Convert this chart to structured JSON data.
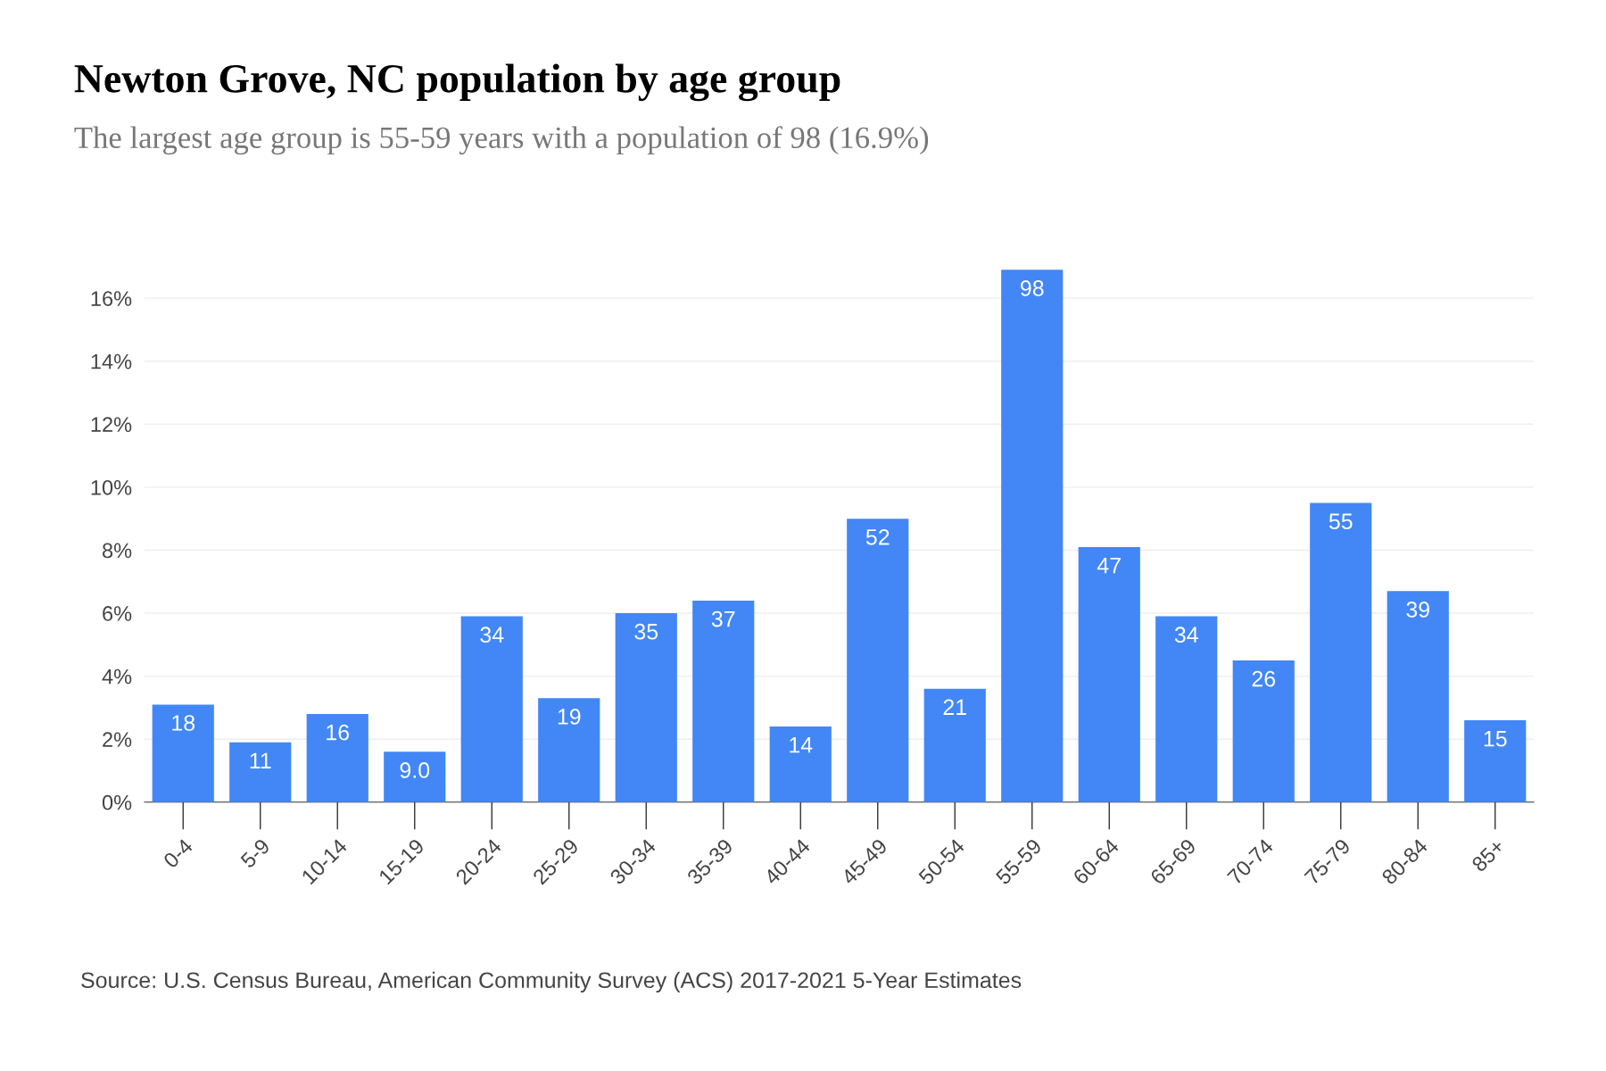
{
  "chart_data": {
    "type": "bar",
    "title": "Newton Grove, NC population by age group",
    "subtitle": "The largest age group is 55-59 years with a population of 98 (16.9%)",
    "categories": [
      "0-4",
      "5-9",
      "10-14",
      "15-19",
      "20-24",
      "25-29",
      "30-34",
      "35-39",
      "40-44",
      "45-49",
      "50-54",
      "55-59",
      "60-64",
      "65-69",
      "70-74",
      "75-79",
      "80-84",
      "85+"
    ],
    "values": [
      3.1,
      1.9,
      2.8,
      1.6,
      5.9,
      3.3,
      6.0,
      6.4,
      2.4,
      9.0,
      3.6,
      16.9,
      8.1,
      5.9,
      4.5,
      9.5,
      6.7,
      2.6
    ],
    "color": "#4287f5",
    "ylim": [
      0,
      17
    ],
    "yticks": [
      {
        "value": 0,
        "label": "0%"
      },
      {
        "value": 2,
        "label": "2%"
      },
      {
        "value": 4,
        "label": "4%"
      },
      {
        "value": 6,
        "label": "6%"
      },
      {
        "value": 8,
        "label": "8%"
      },
      {
        "value": 10,
        "label": "10%"
      },
      {
        "value": 12,
        "label": "12%"
      },
      {
        "value": 14,
        "label": "14%"
      },
      {
        "value": 16,
        "label": "16%"
      }
    ],
    "grid": "y",
    "annotations": [
      {
        "text": "18",
        "x": "0-4",
        "y": 3.1
      },
      {
        "text": "11",
        "x": "5-9",
        "y": 1.9
      },
      {
        "text": "16",
        "x": "10-14",
        "y": 2.8
      },
      {
        "text": "9.0",
        "x": "15-19",
        "y": 1.6
      },
      {
        "text": "34",
        "x": "20-24",
        "y": 5.9
      },
      {
        "text": "19",
        "x": "25-29",
        "y": 3.3
      },
      {
        "text": "35",
        "x": "30-34",
        "y": 6.0
      },
      {
        "text": "37",
        "x": "35-39",
        "y": 6.4
      },
      {
        "text": "14",
        "x": "40-44",
        "y": 2.4
      },
      {
        "text": "52",
        "x": "45-49",
        "y": 9.0
      },
      {
        "text": "21",
        "x": "50-54",
        "y": 3.6
      },
      {
        "text": "98",
        "x": "55-59",
        "y": 16.9
      },
      {
        "text": "47",
        "x": "60-64",
        "y": 8.1
      },
      {
        "text": "34",
        "x": "65-69",
        "y": 5.9
      },
      {
        "text": "26",
        "x": "70-74",
        "y": 4.5
      },
      {
        "text": "55",
        "x": "75-79",
        "y": 9.5
      },
      {
        "text": "39",
        "x": "80-84",
        "y": 6.7
      },
      {
        "text": "15",
        "x": "85+",
        "y": 2.6
      },
      "Source: U.S. Census Bureau, American Community Survey (ACS) 2017-2021 5-Year Estimates"
    ]
  }
}
